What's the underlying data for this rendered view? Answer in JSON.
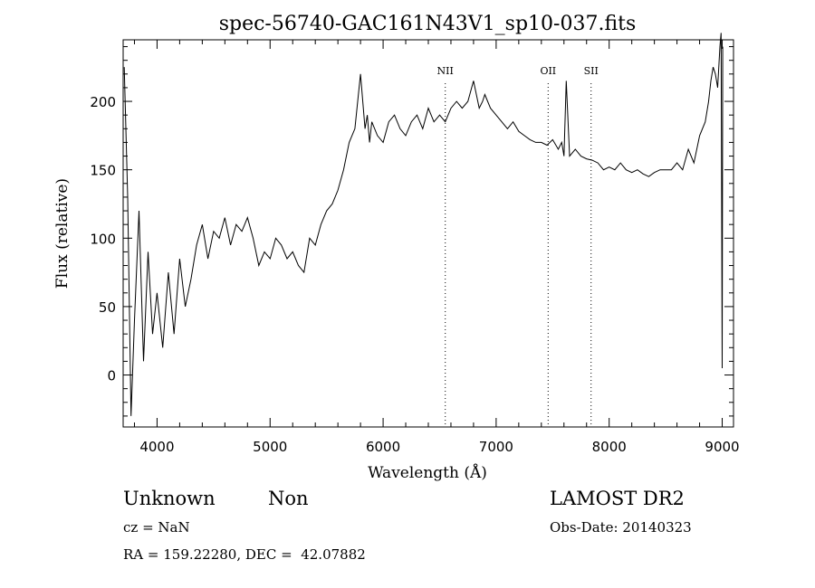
{
  "chart_data": {
    "type": "line",
    "title": "spec-56740-GAC161N43V1_sp10-037.fits",
    "xlabel": "Wavelength (Å)",
    "ylabel": "Flux (relative)",
    "xlim": [
      3700,
      9100
    ],
    "ylim": [
      -38,
      245
    ],
    "xticks": [
      4000,
      5000,
      6000,
      7000,
      8000,
      9000
    ],
    "xtick_labels": [
      "4000",
      "5000",
      "6000",
      "7000",
      "8000",
      "9000"
    ],
    "yticks": [
      0,
      50,
      100,
      150,
      200
    ],
    "ytick_labels": [
      "0",
      "50",
      "100",
      "150",
      "200"
    ],
    "grid": false,
    "series": [
      {
        "x": [
          3710,
          3740,
          3770,
          3800,
          3840,
          3880,
          3920,
          3960,
          4000,
          4050,
          4100,
          4150,
          4200,
          4250,
          4300,
          4350,
          4400,
          4450,
          4500,
          4550,
          4600,
          4650,
          4700,
          4750,
          4800,
          4850,
          4900,
          4950,
          5000,
          5050,
          5100,
          5150,
          5200,
          5250,
          5300,
          5350,
          5400,
          5450,
          5500,
          5550,
          5600,
          5650,
          5700,
          5750,
          5800,
          5820,
          5840,
          5860,
          5880,
          5900,
          5950,
          6000,
          6050,
          6100,
          6150,
          6200,
          6250,
          6300,
          6350,
          6400,
          6450,
          6500,
          6550,
          6600,
          6650,
          6700,
          6750,
          6800,
          6850,
          6880,
          6900,
          6950,
          7000,
          7050,
          7100,
          7150,
          7200,
          7250,
          7300,
          7350,
          7400,
          7450,
          7500,
          7550,
          7580,
          7600,
          7620,
          7650,
          7700,
          7750,
          7800,
          7850,
          7900,
          7950,
          8000,
          8050,
          8100,
          8150,
          8200,
          8250,
          8300,
          8350,
          8400,
          8450,
          8500,
          8550,
          8600,
          8650,
          8700,
          8750,
          8800,
          8850,
          8880,
          8900,
          8920,
          8940,
          8960,
          8980,
          8990,
          9000,
          9005
        ],
        "y": [
          225,
          130,
          -30,
          40,
          120,
          10,
          90,
          30,
          60,
          20,
          75,
          30,
          85,
          50,
          70,
          95,
          110,
          85,
          105,
          100,
          115,
          95,
          110,
          105,
          115,
          100,
          80,
          90,
          85,
          100,
          95,
          85,
          90,
          80,
          75,
          100,
          95,
          110,
          120,
          125,
          135,
          150,
          170,
          180,
          220,
          200,
          180,
          190,
          170,
          185,
          175,
          170,
          185,
          190,
          180,
          175,
          185,
          190,
          180,
          195,
          185,
          190,
          185,
          195,
          200,
          195,
          200,
          215,
          195,
          200,
          205,
          195,
          190,
          185,
          180,
          185,
          178,
          175,
          172,
          170,
          170,
          168,
          172,
          165,
          170,
          160,
          215,
          160,
          165,
          160,
          158,
          157,
          155,
          150,
          152,
          150,
          155,
          150,
          148,
          150,
          147,
          145,
          148,
          150,
          150,
          150,
          155,
          150,
          165,
          155,
          175,
          185,
          200,
          215,
          225,
          220,
          210,
          240,
          250,
          5,
          240
        ]
      }
    ],
    "emission_lines": [
      {
        "name": "NII",
        "wavelength": 6550
      },
      {
        "name": "OII",
        "wavelength": 7460
      },
      {
        "name": "SII",
        "wavelength": 7840
      }
    ]
  },
  "info": {
    "class": "Unknown",
    "subclass": "Non",
    "survey": "LAMOST DR2",
    "cz": "cz = NaN",
    "obs_date": "Obs-Date: 20140323",
    "radec": "RA = 159.22280, DEC =  42.07882"
  }
}
